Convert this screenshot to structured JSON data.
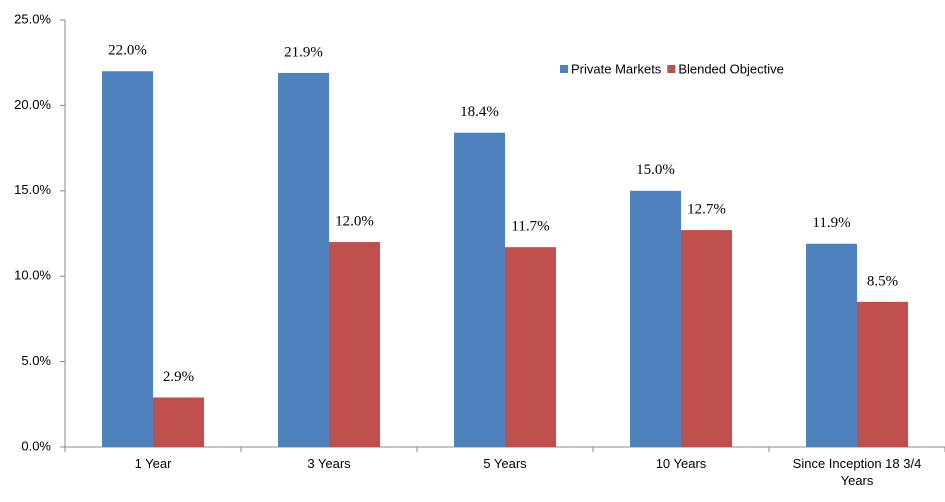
{
  "chart_data": {
    "type": "bar",
    "categories": [
      "1 Year",
      "3 Years",
      "5 Years",
      "10 Years",
      "Since Inception  18 3/4 Years"
    ],
    "series": [
      {
        "name": "Private Markets",
        "color": "#4f81bd",
        "values": [
          22.0,
          21.9,
          18.4,
          15.0,
          11.9
        ],
        "value_labels": [
          "22.0%",
          "21.9%",
          "18.4%",
          "15.0%",
          "11.9%"
        ]
      },
      {
        "name": "Blended Objective",
        "color": "#c0504d",
        "values": [
          2.9,
          12.0,
          11.7,
          12.7,
          8.5
        ],
        "value_labels": [
          "2.9%",
          "12.0%",
          "11.7%",
          "12.7%",
          "8.5%"
        ]
      }
    ],
    "ylim": [
      0,
      25
    ],
    "yticks": [
      {
        "value": 0,
        "label": "0.0%"
      },
      {
        "value": 5,
        "label": "5.0%"
      },
      {
        "value": 10,
        "label": "10.0%"
      },
      {
        "value": 15,
        "label": "15.0%"
      },
      {
        "value": 20,
        "label": "20.0%"
      },
      {
        "value": 25,
        "label": "25.0%"
      }
    ],
    "legend": "top-right",
    "grid": false
  }
}
